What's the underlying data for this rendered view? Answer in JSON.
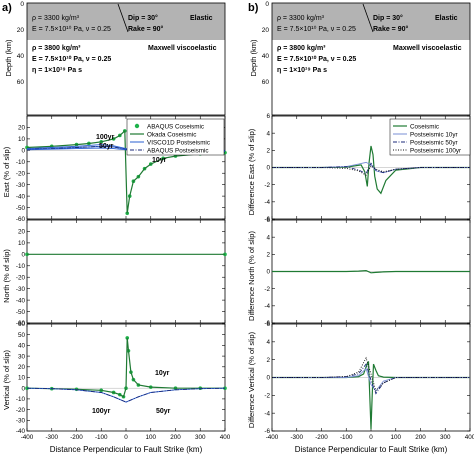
{
  "colors": {
    "elastic_band": "#b3b3b3",
    "abaqus_coseismic": "#1db24a",
    "okada_coseismic": "#1f7a33",
    "visco1d_postseismic": "#2a5fd1",
    "abaqus_postseismic": "#1b2a7a",
    "coseismic_diff": "#1f7a33",
    "postseismic_10yr": "#7a8fd6",
    "postseismic_50yr": "#1b2a7a",
    "postseismic_100yr": "#111111"
  },
  "model": {
    "elastic_rho": "ρ = 3300 kg/m³",
    "elastic_E": "E = 7.5×10¹⁰ Pa, ν = 0.25",
    "elastic_label": "Elastic",
    "dip": "Dip = 30°",
    "rake": "Rake = 90°",
    "visco_rho": "ρ = 3800 kg/m³",
    "visco_E": "E = 7.5×10¹⁰ Pa, ν = 0.25",
    "visco_eta": "η = 1×10¹⁹ Pa s",
    "visco_label": "Maxwell viscoelastic",
    "ylabel": "Depth (km)",
    "yticks": [
      "0",
      "20",
      "40",
      "60"
    ]
  },
  "panels": {
    "a": {
      "label": "a)",
      "ylabels": [
        "East (% of slip)",
        "North (% of slip)",
        "Vertical (% of slip)"
      ],
      "xlabel": "Distance Perpendicular to Fault Strike (km)",
      "legend": [
        "ABAQUS Coseismic",
        "Okada Coseismic",
        "VISCO1D Postseismic",
        "ABAQUS Postseismic"
      ],
      "annotations_east": [
        "100yr",
        "50yr",
        "10yr"
      ],
      "annotations_vertical": [
        "10yr",
        "100yr",
        "50yr"
      ]
    },
    "b": {
      "label": "b)",
      "ylabels": [
        "Difference East (% of slip)",
        "Difference North (% of slip)",
        "Difference Vertical (% of slip)"
      ],
      "xlabel": "Distance Perpendicular to Fault Strike (km)",
      "legend": [
        "Coseismic",
        "Postseismic 10yr",
        "Postseismic 50yr",
        "Postseismic 100yr"
      ]
    }
  },
  "chart_data": [
    {
      "type": "line",
      "panel": "a-east",
      "xlabel": "",
      "ylabel": "East (% of slip)",
      "xlim": [
        -400,
        400
      ],
      "ylim": [
        -60,
        30
      ],
      "xticks": [
        -400,
        -300,
        -200,
        -100,
        0,
        100,
        200,
        300,
        400
      ],
      "yticks": [
        20,
        10,
        0,
        -10,
        -20,
        -30,
        -40,
        -50,
        -60
      ],
      "series": [
        {
          "name": "ABAQUS Coseismic",
          "style": "markers",
          "x": [
            -400,
            -300,
            -200,
            -150,
            -100,
            -50,
            -25,
            -5,
            5,
            15,
            30,
            50,
            75,
            100,
            150,
            200,
            300,
            400
          ],
          "y": [
            2.5,
            3.5,
            5,
            6,
            7.5,
            10,
            13,
            17,
            -55,
            -40,
            -27,
            -23,
            -16,
            -12,
            -7,
            -5,
            -3,
            -2
          ]
        },
        {
          "name": "Okada Coseismic",
          "style": "solid",
          "x": [
            -400,
            -300,
            -200,
            -150,
            -100,
            -50,
            -25,
            -5,
            5,
            15,
            30,
            50,
            75,
            100,
            150,
            200,
            300,
            400
          ],
          "y": [
            2.5,
            3.5,
            5,
            6,
            7.5,
            10,
            13,
            17,
            -55,
            -40,
            -27,
            -23,
            -16,
            -12,
            -7,
            -5,
            -3,
            -2
          ]
        },
        {
          "name": "VISCO1D Postseismic",
          "style": "solid",
          "x": [
            -400,
            -300,
            -200,
            -100,
            -50,
            0,
            50,
            100,
            200,
            300,
            400
          ],
          "y": [
            1,
            1.5,
            2.5,
            3.5,
            3,
            1,
            -1.5,
            -2,
            -1.5,
            -1,
            -0.5
          ]
        },
        {
          "name": "ABAQUS Postseismic",
          "style": "dashdot",
          "x": [
            -400,
            -300,
            -200,
            -100,
            -50,
            0,
            50,
            100,
            200,
            300,
            400
          ],
          "y": [
            1,
            1.5,
            2.5,
            3.5,
            3,
            1,
            -1.5,
            -2,
            -1.5,
            -1,
            -0.5
          ]
        },
        {
          "name": "",
          "style": "solid",
          "x": [
            -400,
            -300,
            -200,
            -100,
            -50,
            0,
            50,
            100,
            200,
            300,
            400
          ],
          "y": [
            0.5,
            1,
            1.5,
            2,
            1.5,
            0.5,
            -0.5,
            -1,
            -0.5,
            -0.3,
            0
          ]
        },
        {
          "name": "",
          "style": "solid",
          "x": [
            -400,
            -300,
            -200,
            -100,
            -50,
            0,
            50,
            100,
            200,
            300,
            400
          ],
          "y": [
            1.5,
            2.5,
            3.5,
            5,
            4,
            1.5,
            -2,
            -3,
            -2,
            -1.5,
            -1
          ]
        }
      ]
    },
    {
      "type": "line",
      "panel": "a-north",
      "xlim": [
        -400,
        400
      ],
      "ylim": [
        -60,
        30
      ],
      "xticks": [
        -400,
        -300,
        -200,
        -100,
        0,
        100,
        200,
        300,
        400
      ],
      "yticks": [
        20,
        10,
        0,
        -10,
        -20,
        -30,
        -40,
        -50,
        -60
      ],
      "series": [
        {
          "name": "ABAQUS Coseismic",
          "style": "markers",
          "x": [
            -400,
            400
          ],
          "y": [
            0,
            0
          ]
        },
        {
          "name": "Okada Coseismic",
          "style": "solid",
          "x": [
            -400,
            400
          ],
          "y": [
            0,
            0
          ]
        }
      ]
    },
    {
      "type": "line",
      "panel": "a-vertical",
      "xlim": [
        -400,
        400
      ],
      "ylim": [
        -40,
        60
      ],
      "xticks": [
        -400,
        -300,
        -200,
        -100,
        0,
        100,
        200,
        300,
        400
      ],
      "yticks": [
        60,
        50,
        40,
        30,
        20,
        10,
        0,
        -10,
        -20,
        -30,
        -40
      ],
      "series": [
        {
          "name": "ABAQUS Coseismic",
          "style": "markers",
          "x": [
            -400,
            -300,
            -200,
            -100,
            -50,
            -25,
            -10,
            0,
            5,
            10,
            20,
            30,
            50,
            100,
            200,
            300,
            400
          ],
          "y": [
            0,
            -0.5,
            -1,
            -2,
            -4,
            -6,
            -8,
            0,
            47,
            35,
            15,
            8,
            3,
            1,
            0,
            0,
            0
          ]
        },
        {
          "name": "Okada Coseismic",
          "style": "solid",
          "x": [
            -400,
            -300,
            -200,
            -100,
            -50,
            -25,
            -10,
            0,
            5,
            10,
            20,
            30,
            50,
            100,
            200,
            300,
            400
          ],
          "y": [
            0,
            -0.5,
            -1,
            -2,
            -4,
            -6,
            -8,
            0,
            47,
            35,
            15,
            8,
            3,
            1,
            0,
            0,
            0
          ]
        },
        {
          "name": "VISCO1D Postseismic",
          "style": "solid",
          "x": [
            -400,
            -300,
            -200,
            -100,
            -50,
            0,
            50,
            100,
            200,
            300,
            400
          ],
          "y": [
            0,
            -0.5,
            -1.5,
            -4,
            -8,
            -13,
            -8,
            -4,
            -1.5,
            -0.5,
            0
          ]
        },
        {
          "name": "ABAQUS Postseismic",
          "style": "dashdot",
          "x": [
            -400,
            -300,
            -200,
            -100,
            -50,
            0,
            50,
            100,
            200,
            300,
            400
          ],
          "y": [
            0,
            -0.5,
            -1.5,
            -4,
            -8,
            -13,
            -8,
            -4,
            -1.5,
            -0.5,
            0
          ]
        }
      ]
    },
    {
      "type": "line",
      "panel": "b-east",
      "xlim": [
        -400,
        400
      ],
      "ylim": [
        -6,
        6
      ],
      "xticks": [
        -400,
        -300,
        -200,
        -100,
        0,
        100,
        200,
        300,
        400
      ],
      "yticks": [
        6,
        4,
        2,
        0,
        -2,
        -4,
        -6
      ],
      "series": [
        {
          "name": "Coseismic",
          "style": "solid",
          "x": [
            -400,
            -200,
            -100,
            -40,
            -25,
            -15,
            -8,
            0,
            8,
            15,
            25,
            40,
            60,
            100,
            200,
            400
          ],
          "y": [
            0,
            0,
            0.05,
            0.3,
            -0.5,
            -2.2,
            0.5,
            2.5,
            1.5,
            -1,
            -2.5,
            -3,
            -1.5,
            -0.3,
            0,
            0
          ]
        },
        {
          "name": "Postseismic 10yr",
          "style": "solid",
          "x": [
            -400,
            -200,
            -100,
            -50,
            -20,
            0,
            20,
            50,
            100,
            200,
            400
          ],
          "y": [
            0,
            0,
            0.1,
            0.4,
            0.6,
            0.3,
            -0.4,
            -0.6,
            -0.2,
            0,
            0
          ]
        },
        {
          "name": "Postseismic 50yr",
          "style": "dashdot",
          "x": [
            -400,
            -200,
            -100,
            -50,
            -20,
            0,
            20,
            50,
            100,
            200,
            400
          ],
          "y": [
            0,
            0,
            0.1,
            -0.3,
            -0.7,
            0.5,
            -0.3,
            -0.6,
            -0.2,
            0,
            0
          ]
        },
        {
          "name": "Postseismic 100yr",
          "style": "dotted",
          "x": [
            -400,
            -200,
            -100,
            -50,
            -20,
            0,
            20,
            50,
            100,
            200,
            400
          ],
          "y": [
            0,
            0,
            -0.1,
            -0.4,
            -0.9,
            0.2,
            -0.2,
            -0.5,
            -0.2,
            0,
            0
          ]
        }
      ]
    },
    {
      "type": "line",
      "panel": "b-north",
      "xlim": [
        -400,
        400
      ],
      "ylim": [
        -6,
        6
      ],
      "xticks": [
        -400,
        -300,
        -200,
        -100,
        0,
        100,
        200,
        300,
        400
      ],
      "yticks": [
        6,
        4,
        2,
        0,
        -2,
        -4,
        -6
      ],
      "series": [
        {
          "name": "Coseismic",
          "style": "solid",
          "x": [
            -400,
            -100,
            -50,
            -20,
            0,
            20,
            50,
            100,
            400
          ],
          "y": [
            0,
            0,
            0.05,
            0.1,
            -0.15,
            -0.1,
            -0.05,
            0,
            0
          ]
        }
      ]
    },
    {
      "type": "line",
      "panel": "b-vertical",
      "xlim": [
        -400,
        400
      ],
      "ylim": [
        -6,
        6
      ],
      "xticks": [
        -400,
        -300,
        -200,
        -100,
        0,
        100,
        200,
        300,
        400
      ],
      "yticks": [
        6,
        4,
        2,
        0,
        -2,
        -4,
        -6
      ],
      "series": [
        {
          "name": "Coseismic",
          "style": "solid",
          "x": [
            -400,
            -200,
            -100,
            -50,
            -30,
            -20,
            -10,
            0,
            5,
            10,
            20,
            30,
            50,
            100,
            200,
            400
          ],
          "y": [
            0,
            0,
            0,
            0.1,
            0.4,
            1.2,
            1.8,
            -5.8,
            -2,
            1.5,
            0.8,
            0.2,
            0.05,
            0,
            0,
            0
          ]
        },
        {
          "name": "Postseismic 10yr",
          "style": "solid",
          "x": [
            -400,
            -200,
            -100,
            -50,
            -20,
            0,
            20,
            50,
            100,
            200,
            400
          ],
          "y": [
            0,
            0,
            0,
            0.2,
            1,
            -0.8,
            -1.5,
            -0.4,
            0,
            0,
            0
          ]
        },
        {
          "name": "Postseismic 50yr",
          "style": "dashdot",
          "x": [
            -400,
            -200,
            -100,
            -50,
            -20,
            0,
            20,
            50,
            100,
            200,
            400
          ],
          "y": [
            0,
            0,
            0.1,
            0.4,
            1.5,
            -0.3,
            -1.8,
            -0.6,
            0,
            0,
            0
          ]
        },
        {
          "name": "Postseismic 100yr",
          "style": "dotted",
          "x": [
            -400,
            -200,
            -100,
            -50,
            -20,
            0,
            20,
            50,
            100,
            200,
            400
          ],
          "y": [
            0,
            0,
            0.1,
            0.6,
            2.2,
            0.4,
            -1.5,
            -0.6,
            0,
            0,
            0
          ]
        }
      ]
    }
  ]
}
